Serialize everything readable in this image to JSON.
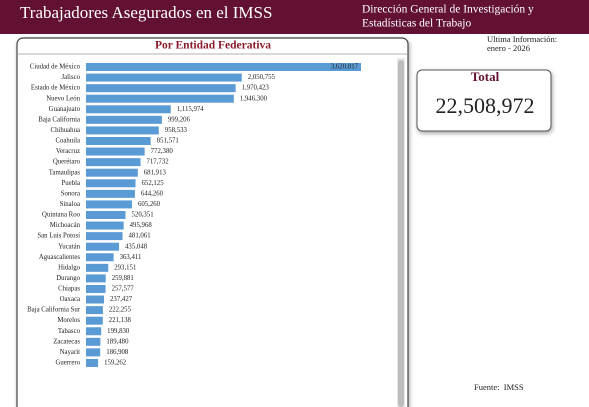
{
  "header": {
    "title": "Trabajadores Asegurados en el IMSS",
    "department": [
      "Dirección General de Investigación y",
      "Estadísticas del Trabajo"
    ]
  },
  "info": {
    "label": "Ultima Información:",
    "date": "enero - 2026"
  },
  "total": {
    "label": "Total",
    "value": "22,508,972"
  },
  "source": "Fuente:  IMSS",
  "chart_data": {
    "type": "bar",
    "orientation": "horizontal",
    "title": "Por Entidad Federativa",
    "color": "#5b9bd5",
    "categories": [
      "Ciudad de México",
      "Jalisco",
      "Estado de México",
      "Nuevo León",
      "Guanajuato",
      "Baja California",
      "Chihuahua",
      "Coahuila",
      "Veracruz",
      "Querétaro",
      "Tamaulipas",
      "Puebla",
      "Sonora",
      "Sinaloa",
      "Quintana Roo",
      "Michoacán",
      "San Luis Potosí",
      "Yucatán",
      "Aguascalientes",
      "Hidalgo",
      "Durango",
      "Chiapas",
      "Oaxaca",
      "Baja California Sur",
      "Morelos",
      "Tabasco",
      "Zacatecas",
      "Nayarit",
      "Guerrero"
    ],
    "values": [
      3620817,
      2050755,
      1970423,
      1946300,
      1115974,
      999206,
      958533,
      851571,
      772380,
      717732,
      681913,
      652125,
      644260,
      605260,
      520351,
      495968,
      481061,
      435048,
      363411,
      293151,
      259881,
      257577,
      237427,
      222255,
      221138,
      199830,
      189480,
      186908,
      159262
    ],
    "value_labels": [
      "3,620,817",
      "2,050,755",
      "1,970,423",
      "1,946,300",
      "1,115,974",
      "999,206",
      "958,533",
      "851,571",
      "772,380",
      "717,732",
      "681,913",
      "652,125",
      "644,260",
      "605,260",
      "520,351",
      "495,968",
      "481,061",
      "435,048",
      "363,411",
      "293,151",
      "259,881",
      "257,577",
      "237,427",
      "222,255",
      "221,138",
      "199,830",
      "189,480",
      "186,908",
      "159,262"
    ]
  }
}
